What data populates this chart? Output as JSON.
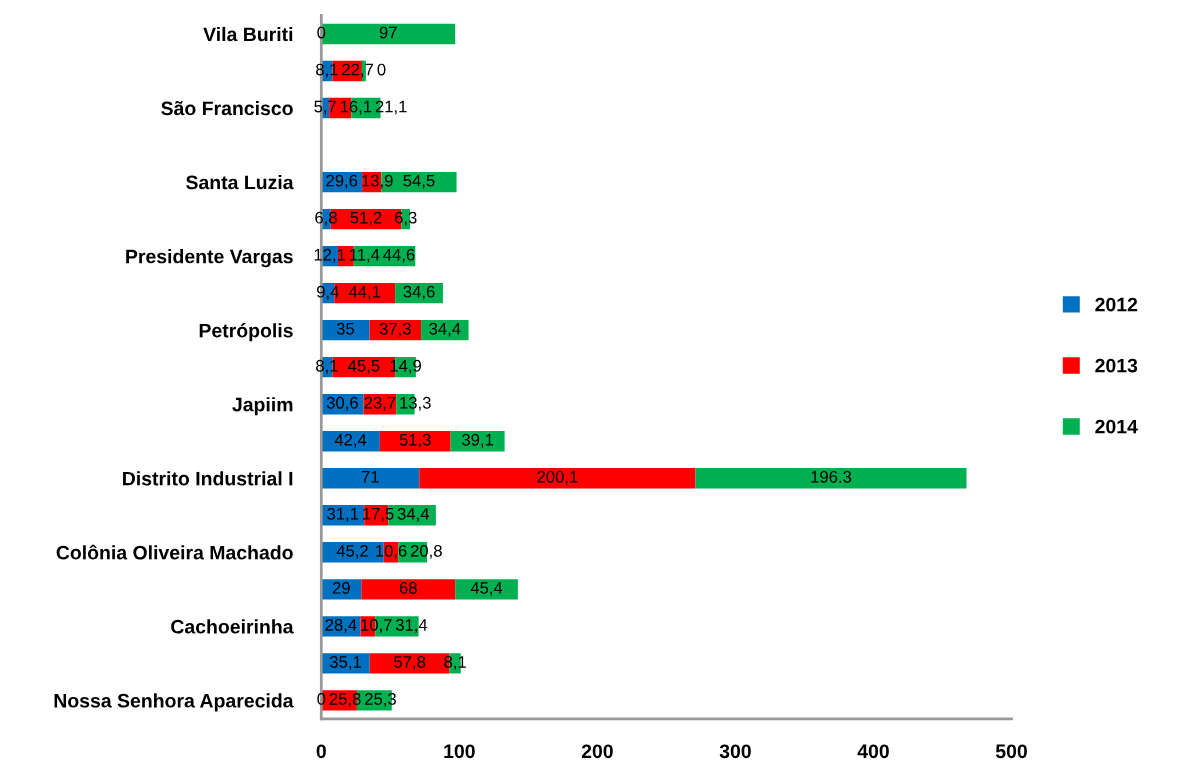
{
  "chart_data": {
    "type": "bar",
    "orientation": "horizontal",
    "stacked": true,
    "categories": [
      "Vila Buriti",
      null,
      "São Francisco",
      null,
      "Santa Luzia",
      null,
      "Presidente Vargas",
      null,
      "Petrópolis",
      null,
      "Japiim",
      null,
      "Distrito Industrial I",
      null,
      "Colônia Oliveira Machado",
      null,
      "Cachoeirinha",
      null,
      "Nossa Senhora Aparecida"
    ],
    "series": [
      {
        "name": "2012",
        "color": "#0070c0",
        "values": [
          null,
          8.1,
          5.7,
          null,
          29.6,
          6.8,
          12.1,
          9.4,
          35,
          8.1,
          30.6,
          42.4,
          71,
          31.1,
          45.2,
          29,
          28.4,
          35.1,
          0
        ],
        "value_labels": [
          null,
          "8,1",
          "5,7",
          null,
          "29,6",
          "6,8",
          "12,1",
          "9,4",
          "35",
          "8,1",
          "30,6",
          "42,4",
          "71",
          "31,1",
          "45,2",
          "29",
          "28,4",
          "35,1",
          "0"
        ]
      },
      {
        "name": "2013",
        "color": "#ff0000",
        "values": [
          0,
          22.7,
          16.1,
          null,
          13.9,
          51.2,
          11.4,
          44.1,
          37.3,
          45.5,
          23.7,
          51.3,
          200.1,
          17.5,
          10.6,
          68,
          10.7,
          57.8,
          25.8
        ],
        "value_labels": [
          "0",
          "22,7",
          "16,1",
          null,
          "13,9",
          "51,2",
          "11,4",
          "44,1",
          "37,3",
          "45,5",
          "23,7",
          "51,3",
          "200,1",
          "17,5",
          "10,6",
          "68",
          "10,7",
          "57,8",
          "25,8"
        ]
      },
      {
        "name": "2014",
        "color": "#00b050",
        "values": [
          97,
          0,
          21.1,
          null,
          54.5,
          6.3,
          44.6,
          34.6,
          34.4,
          14.9,
          13.3,
          39.1,
          196.3,
          34.4,
          20.8,
          45.4,
          31.4,
          8.1,
          25.3
        ],
        "value_labels": [
          "97",
          "0",
          "21,1",
          null,
          "54,5",
          "6,3",
          "44,6",
          "34,6",
          "34,4",
          "14,9",
          "13,3",
          "39,1",
          "196.3",
          "34,4",
          "20,8",
          "45,4",
          "31,4",
          "8,1",
          "25,3"
        ]
      }
    ],
    "xlim": [
      0,
      500
    ],
    "xticks": [
      0,
      100,
      200,
      300,
      400,
      500
    ],
    "grid": false,
    "legend": "right"
  }
}
